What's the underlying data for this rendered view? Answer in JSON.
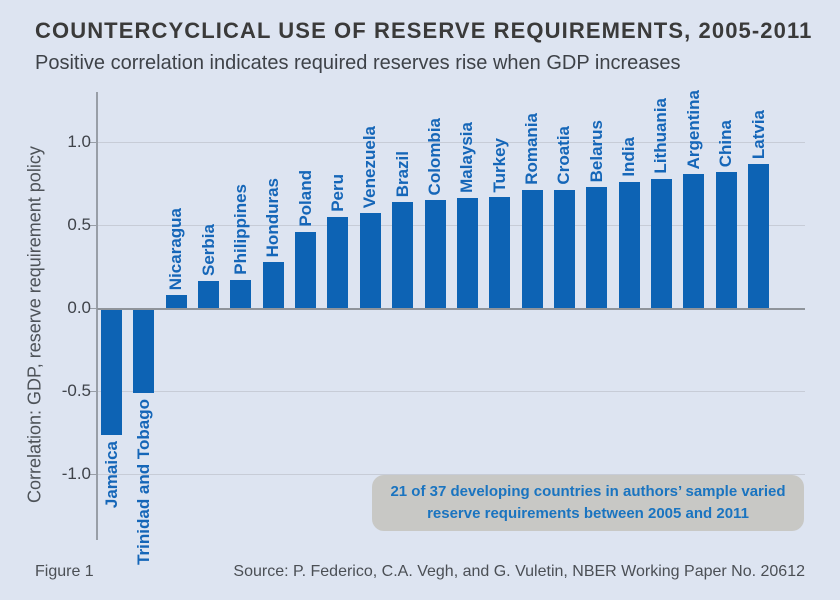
{
  "header": {
    "title": "COUNTERCYCLICAL USE OF RESERVE REQUIREMENTS, 2005-2011",
    "subtitle": "Positive correlation indicates required reserves rise when GDP increases"
  },
  "chart_data": {
    "type": "bar",
    "categories": [
      "Jamaica",
      "Trinidad and Tobago",
      "Nicaragua",
      "Serbia",
      "Philippines",
      "Honduras",
      "Poland",
      "Peru",
      "Venezuela",
      "Brazil",
      "Colombia",
      "Malaysia",
      "Turkey",
      "Romania",
      "Croatia",
      "Belarus",
      "India",
      "Lithuania",
      "Argentina",
      "China",
      "Latvia"
    ],
    "values": [
      -0.75,
      -0.5,
      0.08,
      0.16,
      0.17,
      0.28,
      0.46,
      0.55,
      0.57,
      0.64,
      0.65,
      0.66,
      0.67,
      0.71,
      0.71,
      0.73,
      0.76,
      0.78,
      0.81,
      0.82,
      0.87
    ],
    "title": "COUNTERCYCLICAL USE OF RESERVE REQUIREMENTS, 2005-2011",
    "xlabel": "",
    "ylabel": "Correlation: GDP, reserve requirement policy",
    "ylim": [
      -1.4,
      1.3
    ],
    "yticks": [
      1.0,
      0.5,
      0.0,
      -0.5,
      -1.0
    ],
    "ytick_labels": [
      "1.0",
      "0.5",
      "0.0",
      "-0.5",
      "-1.0"
    ],
    "gridlines": [
      1.0,
      0.5,
      -0.5,
      -1.0
    ],
    "grid": "on",
    "legend": "none",
    "bar_color": "#0d63b4",
    "label_color": "#1566b8"
  },
  "annotation": {
    "lines": [
      "21 of 37 developing countries in authors’ sample varied",
      "reserve requirements between 2005 and 2011"
    ],
    "text_color": "#1a74c0",
    "bg_color": "#c8c8c5"
  },
  "footer": {
    "figure_label": "Figure 1",
    "source": "Source: P. Federico, C.A. Vegh, and G. Vuletin, NBER Working Paper No. 20612"
  },
  "colors": {
    "background": "#dde4f1",
    "title_text": "#3a3a3a",
    "axis_text": "#3f434a",
    "gridline": "#c7ccd7",
    "baseline": "#8f949b"
  }
}
